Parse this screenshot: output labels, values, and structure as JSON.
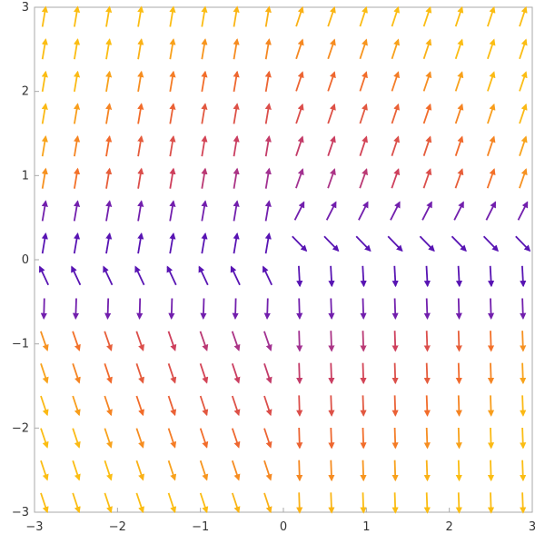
{
  "chart_data": {
    "type": "vector-field",
    "title": "",
    "xlabel": "",
    "ylabel": "",
    "xlim": [
      -3,
      3
    ],
    "ylim": [
      -3,
      3
    ],
    "frame": true,
    "grid": false,
    "x_ticks": [
      "−3",
      "−2",
      "−1",
      "0",
      "1",
      "2",
      "3"
    ],
    "y_ticks": [
      "−3",
      "−2",
      "−1",
      "0",
      "1",
      "2",
      "3"
    ],
    "field": {
      "description": "Direction field: approximately (1, 3 sign(y)) far from y = 0, forming a horizontal shear band near y ≈ 0; vectors point up/left below the band on the left and right/down on the right.",
      "sample_spacing": 0.3842,
      "x_samples": [
        -2.885,
        -2.5,
        -2.115,
        -1.731,
        -1.346,
        -0.962,
        -0.577,
        -0.192,
        0.192,
        0.577,
        0.962,
        1.346,
        1.731,
        2.115,
        2.5,
        2.885
      ],
      "y_samples": [
        -2.885,
        -2.5,
        -2.115,
        -1.731,
        -1.346,
        -0.962,
        -0.577,
        -0.192,
        0.192,
        0.577,
        0.962,
        1.346,
        1.731,
        2.115,
        2.5,
        2.885
      ]
    },
    "color_scale": {
      "low_magnitude": "#4b0fb5",
      "mid_low": "#8e2aa8",
      "mid": "#d0405a",
      "mid_high": "#f26c2a",
      "high_magnitude": "#fbbd13"
    }
  }
}
